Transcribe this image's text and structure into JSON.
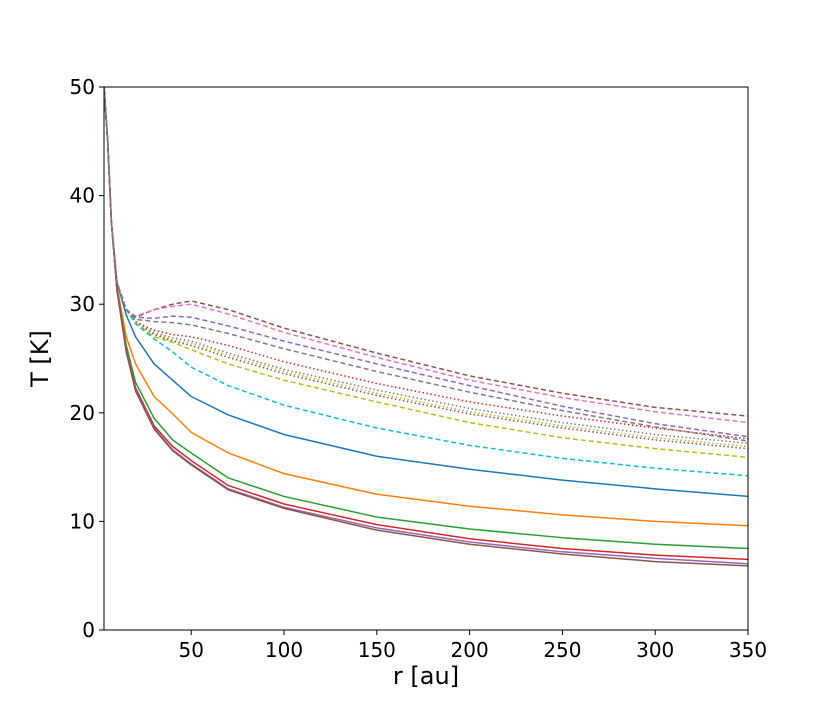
{
  "chart_data": {
    "type": "line",
    "title": "",
    "xlabel": "r [au]",
    "ylabel": "T [K]",
    "xlim": [
      3,
      350
    ],
    "ylim": [
      0,
      50
    ],
    "xticks": [
      50,
      100,
      150,
      200,
      250,
      300,
      350
    ],
    "yticks": [
      0,
      10,
      20,
      30,
      40,
      50
    ],
    "x": [
      3,
      5,
      7,
      10,
      15,
      20,
      30,
      40,
      50,
      70,
      100,
      150,
      200,
      250,
      300,
      350
    ],
    "grid": false,
    "legend": "none",
    "series": [
      {
        "color": "#1f77b4",
        "style": "solid",
        "values": [
          50,
          45,
          37.5,
          32,
          29,
          27,
          24.5,
          23,
          21.5,
          19.8,
          18,
          16,
          14.8,
          13.8,
          13,
          12.3
        ]
      },
      {
        "color": "#ff7f0e",
        "style": "solid",
        "values": [
          50,
          45,
          37.5,
          31.6,
          27,
          24.5,
          21.5,
          19.9,
          18.2,
          16.3,
          14.4,
          12.5,
          11.4,
          10.6,
          10.0,
          9.6
        ]
      },
      {
        "color": "#2ca02c",
        "style": "solid",
        "values": [
          50,
          45,
          37.5,
          31.4,
          26.2,
          22.8,
          19.5,
          17.5,
          16.3,
          14,
          12.3,
          10.4,
          9.3,
          8.5,
          7.9,
          7.5
        ]
      },
      {
        "color": "#d62728",
        "style": "solid",
        "values": [
          50,
          45,
          37.5,
          31.3,
          25.8,
          22.3,
          18.8,
          16.9,
          15.6,
          13.3,
          11.6,
          9.7,
          8.4,
          7.5,
          6.9,
          6.5
        ]
      },
      {
        "color": "#9467bd",
        "style": "solid",
        "values": [
          50,
          45,
          37.5,
          31.3,
          25.7,
          22.1,
          18.6,
          16.6,
          15.3,
          13,
          11.3,
          9.4,
          8.1,
          7.2,
          6.6,
          6.1
        ]
      },
      {
        "color": "#8c564b",
        "style": "solid",
        "values": [
          50,
          45,
          37.5,
          31.3,
          25.6,
          22.0,
          18.5,
          16.5,
          15.2,
          12.9,
          11.2,
          9.2,
          7.9,
          7.0,
          6.3,
          5.9
        ]
      },
      {
        "color": "#d62728",
        "style": "dotted",
        "values": [
          50,
          45,
          37.5,
          32,
          29.5,
          28.4,
          27.6,
          27.2,
          27.0,
          26.2,
          24.7,
          22.7,
          21.0,
          19.7,
          18.6,
          17.6
        ]
      },
      {
        "color": "#7f7f7f",
        "style": "dotted",
        "values": [
          50,
          45,
          37.5,
          32,
          29.5,
          28.4,
          27.4,
          26.9,
          26.6,
          25.5,
          24.0,
          22.1,
          20.4,
          19.1,
          18.0,
          17.2
        ]
      },
      {
        "color": "#bcbd22",
        "style": "dotted",
        "values": [
          50,
          45,
          37.5,
          32,
          29.5,
          28.4,
          27.3,
          26.7,
          26.4,
          25.3,
          23.8,
          21.8,
          20.1,
          18.8,
          17.7,
          16.9
        ]
      },
      {
        "color": "#8c564b",
        "style": "dotted",
        "values": [
          50,
          45,
          37.5,
          32,
          29.5,
          28.4,
          27.2,
          26.6,
          26.2,
          25.1,
          23.6,
          21.6,
          19.9,
          18.6,
          17.5,
          16.7
        ]
      },
      {
        "color": "#bcbd22",
        "style": "dashed",
        "values": [
          50,
          45,
          37.5,
          32,
          29.5,
          28.3,
          27.0,
          26.5,
          25.8,
          24.5,
          23.0,
          21.0,
          19.1,
          17.7,
          16.7,
          15.9
        ]
      },
      {
        "color": "#17becf",
        "style": "dashed",
        "values": [
          50,
          45,
          37.5,
          32,
          29.5,
          28.2,
          26.8,
          25.6,
          24.2,
          22.5,
          20.7,
          18.6,
          17.0,
          15.8,
          14.9,
          14.2
        ]
      },
      {
        "color": "#8c564b",
        "style": "dashed",
        "values": [
          50,
          45,
          37.5,
          32,
          29.5,
          28.8,
          29.5,
          30.0,
          30.3,
          29.5,
          27.8,
          25.5,
          23.4,
          21.8,
          20.5,
          19.7
        ]
      },
      {
        "color": "#e377c2",
        "style": "dashed",
        "values": [
          50,
          45,
          37.5,
          32,
          29.5,
          28.9,
          29.5,
          29.8,
          30.0,
          29.1,
          27.4,
          25.1,
          23.0,
          21.4,
          20.1,
          19.1
        ]
      },
      {
        "color": "#9467bd",
        "style": "dashed",
        "values": [
          50,
          45,
          37.5,
          32,
          29.5,
          28.8,
          28.7,
          28.9,
          28.8,
          28.0,
          26.6,
          24.5,
          22.5,
          20.6,
          19.0,
          17.8
        ]
      },
      {
        "color": "#7f7f7f",
        "style": "dashed",
        "values": [
          50,
          45,
          37.5,
          32,
          29.5,
          28.6,
          28.4,
          28.3,
          28.1,
          27.3,
          25.9,
          23.8,
          21.9,
          20.2,
          18.7,
          17.4
        ]
      }
    ]
  }
}
